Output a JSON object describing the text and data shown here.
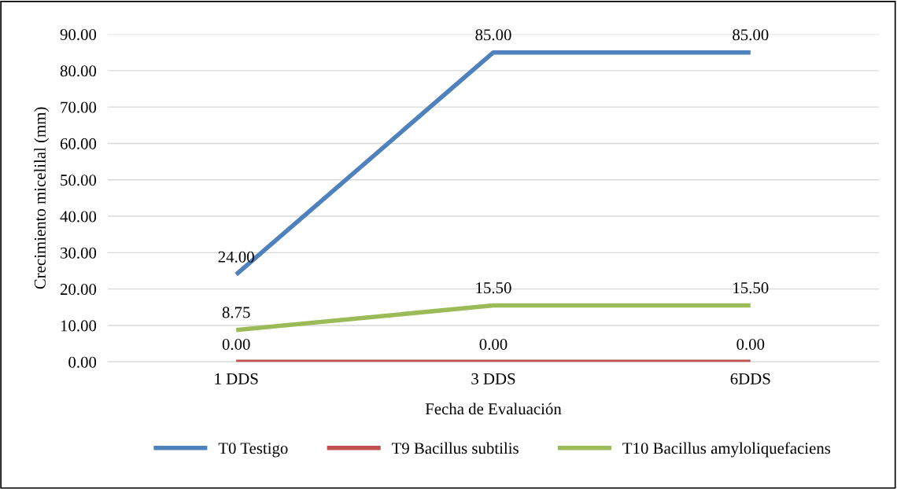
{
  "chart_data": {
    "type": "line",
    "xlabel": "Fecha de Evaluación",
    "ylabel": "Crecimiento micelilal (mm)",
    "categories": [
      "1 DDS",
      "3 DDS",
      "6DDS"
    ],
    "series": [
      {
        "name": "T0 Testigo",
        "color": "#4f81bd",
        "values": [
          24,
          85,
          85
        ],
        "value_labels": [
          "24.00",
          "85.00",
          "85.00"
        ]
      },
      {
        "name": "T9 Bacillus subtilis",
        "color": "#c0504d",
        "values": [
          0,
          0,
          0
        ],
        "value_labels": [
          "0.00",
          "0.00",
          "0.00"
        ]
      },
      {
        "name": "T10 Bacillus amyloliquefaciens",
        "color": "#9bbb59",
        "values": [
          8.75,
          15.5,
          15.5
        ],
        "value_labels": [
          "8.75",
          "15.50",
          "15.50"
        ]
      }
    ],
    "ylim": [
      0,
      90
    ],
    "yticks": [
      {
        "value": 0,
        "label": "0.00"
      },
      {
        "value": 10,
        "label": "10.00"
      },
      {
        "value": 20,
        "label": "20.00"
      },
      {
        "value": 30,
        "label": "30.00"
      },
      {
        "value": 40,
        "label": "40.00"
      },
      {
        "value": 50,
        "label": "50.00"
      },
      {
        "value": 60,
        "label": "60.00"
      },
      {
        "value": 70,
        "label": "70.00"
      },
      {
        "value": 80,
        "label": "80.00"
      },
      {
        "value": 90,
        "label": "90.00"
      }
    ],
    "grid": "y",
    "legend": "bottom",
    "marker": "none",
    "line_style": "solid"
  }
}
